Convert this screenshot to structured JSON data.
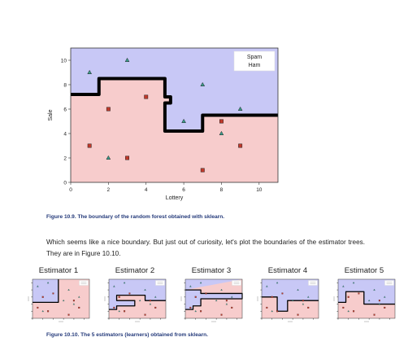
{
  "main_chart": {
    "chart_data": {
      "type": "scatter",
      "xlabel": "Lottery",
      "ylabel": "Sale",
      "xlim": [
        0,
        11
      ],
      "ylim": [
        0,
        11
      ],
      "xticks": [
        0,
        2,
        4,
        6,
        8,
        10
      ],
      "yticks": [
        0,
        2,
        4,
        6,
        8,
        10
      ],
      "grid": false,
      "legend_position": "top-right",
      "series": [
        {
          "name": "Spam",
          "marker": "triangle",
          "color": "#3a9e8c",
          "points": [
            [
              1,
              9
            ],
            [
              3,
              10
            ],
            [
              7,
              8
            ],
            [
              9,
              6
            ],
            [
              6,
              5
            ],
            [
              8,
              4
            ],
            [
              2,
              2
            ]
          ]
        },
        {
          "name": "Ham",
          "marker": "square",
          "color": "#c0392b",
          "points": [
            [
              4,
              7
            ],
            [
              2,
              6
            ],
            [
              8,
              5
            ],
            [
              1,
              3
            ],
            [
              9,
              3
            ],
            [
              3,
              2
            ],
            [
              7,
              1
            ]
          ]
        }
      ],
      "boundary": [
        [
          0,
          7.2
        ],
        [
          1.5,
          7.2
        ],
        [
          1.5,
          8.5
        ],
        [
          5,
          8.5
        ],
        [
          5,
          7
        ],
        [
          5.3,
          7
        ],
        [
          5.3,
          6.5
        ],
        [
          5,
          6.5
        ],
        [
          5,
          4.2
        ],
        [
          7,
          4.2
        ],
        [
          7,
          5.5
        ],
        [
          11,
          5.5
        ]
      ],
      "region_colors": {
        "spam": "#c8c8f6",
        "ham": "#f7cccc"
      }
    }
  },
  "figure_10_9_caption": "Figure 10.9. The boundary of the random forest obtained with sklearn.",
  "paragraph": "Which seems like a nice boundary. But just out of curiosity, let's plot the boundaries of the estimator trees. They are in Figure 10.10.",
  "estimators": [
    {
      "title": "Estimator 1",
      "boundary": [
        [
          0,
          4.5
        ],
        [
          5,
          4.5
        ],
        [
          5,
          11
        ]
      ]
    },
    {
      "title": "Estimator 2",
      "boundary": [
        [
          0,
          2.5
        ],
        [
          1.5,
          2.5
        ],
        [
          1.5,
          3.5
        ],
        [
          5,
          3.5
        ],
        [
          5,
          5
        ],
        [
          1.5,
          5
        ],
        [
          1.5,
          6.5
        ],
        [
          7,
          6.5
        ],
        [
          7,
          5
        ],
        [
          11,
          5
        ]
      ]
    },
    {
      "title": "Estimator 3",
      "boundary": [
        [
          0,
          2.5
        ],
        [
          1.5,
          2.5
        ],
        [
          1.5,
          3.5
        ],
        [
          3,
          3.5
        ],
        [
          3,
          5.5
        ],
        [
          11,
          5.5
        ],
        [
          11,
          7
        ],
        [
          3,
          7
        ],
        [
          3,
          8
        ],
        [
          0,
          8
        ]
      ]
    },
    {
      "title": "Estimator 4",
      "boundary": [
        [
          0,
          6
        ],
        [
          3,
          6
        ],
        [
          3,
          2
        ],
        [
          5,
          2
        ],
        [
          5,
          5
        ],
        [
          11,
          5
        ]
      ]
    },
    {
      "title": "Estimator 5",
      "boundary": [
        [
          0,
          4.5
        ],
        [
          1.5,
          4.5
        ],
        [
          1.5,
          7.5
        ],
        [
          5,
          7.5
        ],
        [
          5,
          4
        ],
        [
          11,
          4
        ]
      ]
    }
  ],
  "figure_10_10_caption": "Figure 10.10. The 5 estimators (learners) obtained from sklearn."
}
